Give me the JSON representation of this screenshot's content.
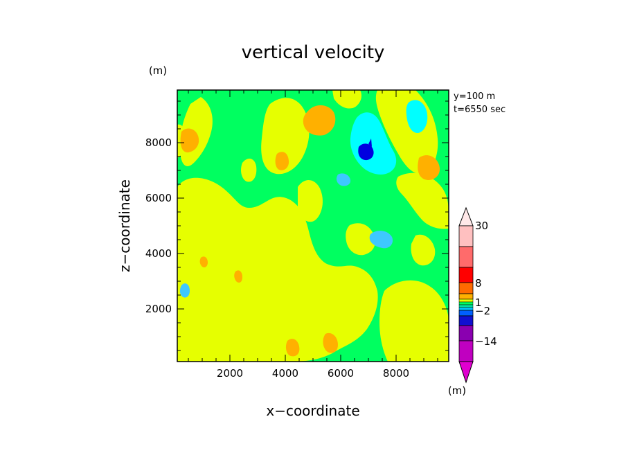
{
  "chart_data": {
    "type": "heatmap",
    "title": "vertical velocity",
    "xlabel": "x−coordinate",
    "ylabel": "z−coordinate",
    "x_unit": "(m)",
    "y_unit": "(m)",
    "info_lines": [
      "y=100  m",
      "t=6550  sec"
    ],
    "xlim": [
      100,
      9900
    ],
    "ylim": [
      100,
      9900
    ],
    "x_ticks": [
      2000,
      4000,
      6000,
      8000
    ],
    "y_ticks": [
      2000,
      4000,
      6000,
      8000
    ],
    "x_tick_labels": [
      "2000",
      "4000",
      "6000",
      "8000"
    ],
    "y_tick_labels": [
      "2000",
      "4000",
      "6000",
      "8000"
    ],
    "colorbar": {
      "labels": [
        {
          "text": "30",
          "value": 30
        },
        {
          "text": "8",
          "value": 8
        },
        {
          "text": "1",
          "value": 1
        },
        {
          "text": "−2",
          "value": -2
        },
        {
          "text": "−14",
          "value": -14
        }
      ],
      "unit": "(m)",
      "colors": [
        "#c000c0",
        "#8a00b0",
        "#1010d0",
        "#0060ff",
        "#00c8ff",
        "#00e0a0",
        "#00ff60",
        "#e6ff00",
        "#ffb000",
        "#ff6a00",
        "#ff0000",
        "#ff6b6b",
        "#ffc0c0",
        "#ffe0e0"
      ]
    },
    "colors": {
      "background_field": "#00ff60",
      "yellow": "#e6ff00",
      "orange": "#ffb000",
      "cyan": "#00ffff",
      "light_blue": "#3ec8ff",
      "blue": "#0000e0"
    }
  }
}
